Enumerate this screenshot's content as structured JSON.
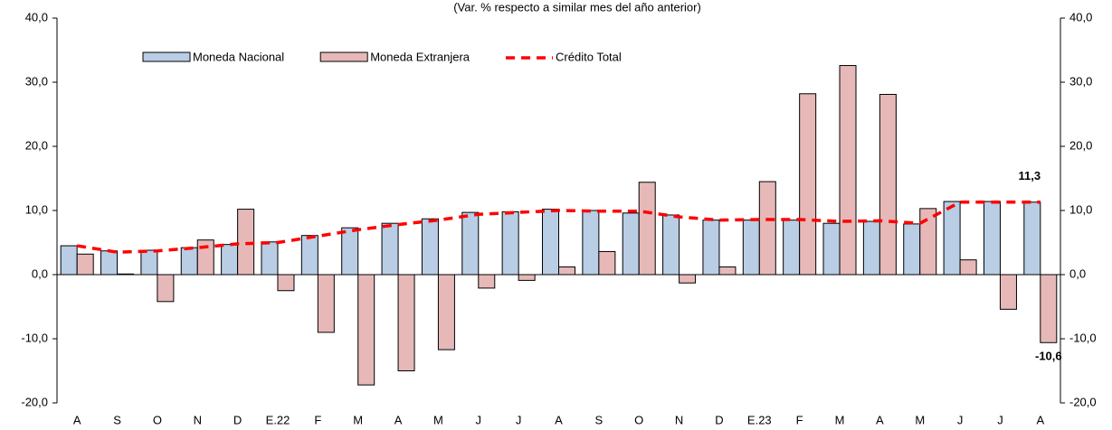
{
  "chart_data": {
    "type": "bar",
    "subtitle": "(Var. % respecto a similar mes del año anterior)",
    "categories": [
      "A",
      "S",
      "O",
      "N",
      "D",
      "E.22",
      "F",
      "M",
      "A",
      "M",
      "J",
      "J",
      "A",
      "S",
      "O",
      "N",
      "D",
      "E.23",
      "F",
      "M",
      "A",
      "M",
      "J",
      "J",
      "A"
    ],
    "series": [
      {
        "name": "Moneda Nacional",
        "type": "bar",
        "color": "#b9cde5",
        "values": [
          4.5,
          3.7,
          3.8,
          4.2,
          4.7,
          5.1,
          6.1,
          7.3,
          8.0,
          8.7,
          9.7,
          9.8,
          10.2,
          10.0,
          9.6,
          9.3,
          8.5,
          8.5,
          8.5,
          8.0,
          8.3,
          7.9,
          11.4,
          11.4,
          11.3
        ]
      },
      {
        "name": "Moneda Extranjera",
        "type": "bar",
        "color": "#e6b9b8",
        "values": [
          3.2,
          0.1,
          -4.2,
          5.4,
          10.2,
          -2.5,
          -9.0,
          -17.2,
          -15.0,
          -11.7,
          -2.1,
          -0.9,
          1.2,
          3.6,
          14.4,
          -1.3,
          1.2,
          14.5,
          28.2,
          32.6,
          28.1,
          10.3,
          2.3,
          -5.4,
          -10.6
        ],
        "value_labels": [
          null,
          null,
          null,
          null,
          null,
          null,
          null,
          null,
          null,
          null,
          null,
          null,
          null,
          null,
          null,
          null,
          null,
          null,
          null,
          null,
          null,
          null,
          null,
          null,
          "-10,6"
        ]
      },
      {
        "name": "Crédito Total",
        "type": "line",
        "color": "#ff0000",
        "values": [
          4.5,
          3.5,
          3.7,
          4.2,
          4.8,
          5.0,
          6.0,
          7.0,
          7.8,
          8.5,
          9.4,
          9.7,
          10.0,
          9.9,
          9.9,
          9.0,
          8.5,
          8.6,
          8.6,
          8.3,
          8.4,
          8.0,
          11.3,
          11.3,
          11.3
        ],
        "value_labels": [
          null,
          null,
          null,
          null,
          null,
          null,
          null,
          null,
          null,
          null,
          null,
          null,
          null,
          null,
          null,
          null,
          null,
          null,
          null,
          null,
          null,
          null,
          null,
          null,
          "11,3"
        ]
      }
    ],
    "ylim": [
      -20,
      40
    ],
    "yticks": [
      {
        "value": -20,
        "label": "-20,0"
      },
      {
        "value": -10,
        "label": "-10,0"
      },
      {
        "value": 0,
        "label": "0,0"
      },
      {
        "value": 10,
        "label": "10,0"
      },
      {
        "value": 20,
        "label": "20,0"
      },
      {
        "value": 30,
        "label": "30,0"
      },
      {
        "value": 40,
        "label": "40,0"
      }
    ],
    "y2lim": [
      -20,
      40
    ],
    "y2ticks": [
      {
        "value": -20,
        "label": "-20,0"
      },
      {
        "value": -10,
        "label": "-10,0"
      },
      {
        "value": 0,
        "label": "0,0"
      },
      {
        "value": 10,
        "label": "10,0"
      },
      {
        "value": 20,
        "label": "20,0"
      },
      {
        "value": 30,
        "label": "30,0"
      },
      {
        "value": 40,
        "label": "40,0"
      }
    ],
    "legend": "top"
  }
}
